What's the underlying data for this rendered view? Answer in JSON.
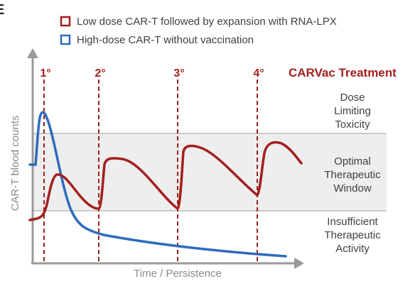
{
  "corner_letter": "E",
  "chart_data": {
    "type": "line",
    "xlabel": "Time / Persistence",
    "ylabel": "CAR-T blood counts",
    "legend_position": "top",
    "colors": {
      "red": "#a31f1f",
      "blue": "#2f6bbd",
      "band": "#eeeeee",
      "axis": "#9a9a9a",
      "zone_line": "#9e9e9e",
      "text": "#404040"
    },
    "legend": [
      {
        "label": "Low dose CAR-T followed by expansion with RNA-LPX",
        "color": "#a31f1f"
      },
      {
        "label": "High-dose CAR-T without vaccination",
        "color": "#2f6bbd"
      }
    ],
    "treatment_label": "CARVac Treatment",
    "doses": [
      "1°",
      "2°",
      "3°",
      "4°"
    ],
    "zones": [
      {
        "lines": [
          "Dose",
          "Limiting",
          "Toxicity"
        ]
      },
      {
        "lines": [
          "Optimal",
          "Therapeutic",
          "Window"
        ]
      },
      {
        "lines": [
          "Insufficient",
          "Therapeutic",
          "Activity"
        ]
      }
    ]
  }
}
